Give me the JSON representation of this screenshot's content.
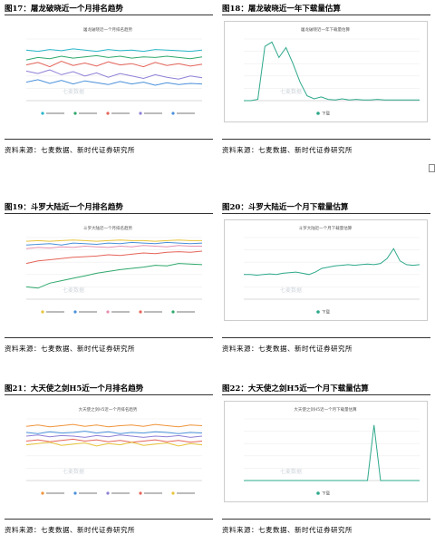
{
  "figures": [
    {
      "label": "图17：",
      "title": "屠龙破晓近一个月排名趋势",
      "watermark": "七麦数据",
      "chart": {
        "type": "line",
        "title": "屠龙破晓近一个月排名趋势",
        "ylim": [
          0,
          100
        ],
        "border": false,
        "series": [
          {
            "color": "#26b5c8",
            "values": [
              82,
              80,
              83,
              81,
              84,
              82,
              80,
              83,
              81,
              82,
              80,
              83,
              82,
              81,
              80,
              82
            ]
          },
          {
            "color": "#2ea86b",
            "values": [
              66,
              70,
              68,
              72,
              69,
              71,
              73,
              70,
              72,
              69,
              71,
              70,
              72,
              70,
              68,
              71
            ]
          },
          {
            "color": "#e5645a",
            "values": [
              58,
              62,
              55,
              64,
              57,
              61,
              56,
              63,
              58,
              60,
              55,
              62,
              57,
              60,
              56,
              59
            ]
          },
          {
            "color": "#8f7fd6",
            "values": [
              48,
              44,
              50,
              42,
              47,
              40,
              45,
              38,
              44,
              40,
              36,
              42,
              38,
              35,
              40,
              37
            ]
          },
          {
            "color": "#4a90d9",
            "values": [
              30,
              34,
              28,
              33,
              27,
              32,
              29,
              26,
              31,
              27,
              30,
              25,
              29,
              26,
              28,
              27
            ]
          }
        ]
      }
    },
    {
      "label": "图18：",
      "title": "屠龙破晓近一年下载量估算",
      "watermark": "七麦数据",
      "chart": {
        "type": "line",
        "title": "屠龙破晓近一年下载量估算",
        "ylim": [
          0,
          100
        ],
        "border": true,
        "legend": "下载",
        "series": [
          {
            "color": "#2ea88b",
            "values": [
              0,
              0,
              2,
              88,
              95,
              70,
              86,
              60,
              30,
              8,
              3,
              6,
              2,
              1,
              3,
              1,
              2,
              1,
              1,
              2,
              1,
              1,
              1,
              1,
              1,
              1
            ]
          }
        ]
      }
    },
    {
      "label": "图19：",
      "title": "斗罗大陆近一个月排名趋势",
      "watermark": "七麦数据",
      "chart": {
        "type": "line",
        "title": "斗罗大陆近一个月排名趋势",
        "ylim": [
          0,
          100
        ],
        "border": false,
        "series": [
          {
            "color": "#e8c43a",
            "values": [
              94,
              95,
              94,
              95,
              96,
              95,
              94,
              95,
              96,
              95,
              95,
              94,
              95,
              96,
              95,
              95
            ]
          },
          {
            "color": "#4a90d9",
            "values": [
              88,
              89,
              90,
              88,
              91,
              90,
              89,
              91,
              90,
              92,
              91,
              90,
              92,
              91,
              90,
              91
            ]
          },
          {
            "color": "#e58fb0",
            "values": [
              82,
              84,
              83,
              85,
              84,
              86,
              85,
              84,
              86,
              85,
              87,
              86,
              85,
              87,
              86,
              86
            ]
          },
          {
            "color": "#e5645a",
            "values": [
              58,
              62,
              64,
              66,
              68,
              69,
              70,
              72,
              71,
              73,
              75,
              74,
              76,
              77,
              76,
              78
            ]
          },
          {
            "color": "#2ea86b",
            "values": [
              20,
              18,
              26,
              30,
              34,
              38,
              42,
              45,
              48,
              50,
              52,
              55,
              54,
              58,
              57,
              56
            ]
          }
        ]
      }
    },
    {
      "label": "图20：",
      "title": "斗罗大陆近一个月下载量估算",
      "watermark": "七麦数据",
      "chart": {
        "type": "line",
        "title": "斗罗大陆近一个月下载量估算",
        "ylim": [
          0,
          100
        ],
        "border": true,
        "legend": "下载",
        "series": [
          {
            "color": "#2ea88b",
            "values": [
              40,
              40,
              39,
              40,
              41,
              40,
              42,
              43,
              44,
              42,
              40,
              44,
              50,
              52,
              54,
              55,
              56,
              55,
              56,
              57,
              56,
              58,
              66,
              82,
              62,
              56,
              55,
              56
            ]
          }
        ]
      }
    },
    {
      "label": "图21：",
      "title": "大天使之剑H5近一个月排名趋势",
      "watermark": "七麦数据",
      "chart": {
        "type": "line",
        "title": "大天使之剑H5近一个月排名趋势",
        "ylim": [
          0,
          100
        ],
        "border": false,
        "series": [
          {
            "color": "#f0943a",
            "values": [
              88,
              90,
              87,
              89,
              91,
              88,
              90,
              87,
              89,
              90,
              88,
              91,
              89,
              87,
              90,
              89
            ]
          },
          {
            "color": "#4a90d9",
            "values": [
              78,
              76,
              79,
              77,
              78,
              80,
              77,
              79,
              76,
              78,
              77,
              79,
              78,
              76,
              78,
              77
            ]
          },
          {
            "color": "#8f7fd6",
            "values": [
              72,
              74,
              71,
              73,
              72,
              70,
              73,
              71,
              74,
              72,
              70,
              72,
              71,
              73,
              70,
              72
            ]
          },
          {
            "color": "#e5645a",
            "values": [
              64,
              66,
              63,
              65,
              67,
              64,
              66,
              63,
              65,
              62,
              64,
              66,
              63,
              65,
              62,
              64
            ]
          },
          {
            "color": "#e8c43a",
            "values": [
              58,
              60,
              62,
              57,
              59,
              61,
              56,
              60,
              58,
              62,
              57,
              59,
              61,
              56,
              60,
              58
            ]
          }
        ]
      }
    },
    {
      "label": "图22：",
      "title": "大天使之剑H5近一个月下载量估算",
      "watermark": "七麦数据",
      "chart": {
        "type": "line",
        "title": "大天使之剑H5近一个月下载量估算",
        "ylim": [
          0,
          100
        ],
        "border": true,
        "legend": "下载",
        "series": [
          {
            "color": "#2ea88b",
            "values": [
              0,
              0,
              0,
              0,
              0,
              0,
              0,
              0,
              0,
              0,
              0,
              0,
              0,
              0,
              0,
              0,
              0,
              0,
              0,
              0,
              90,
              0,
              0,
              0,
              0,
              0,
              0,
              0
            ]
          }
        ]
      }
    }
  ],
  "source": "资料来源：七麦数据、新时代证券研究所"
}
